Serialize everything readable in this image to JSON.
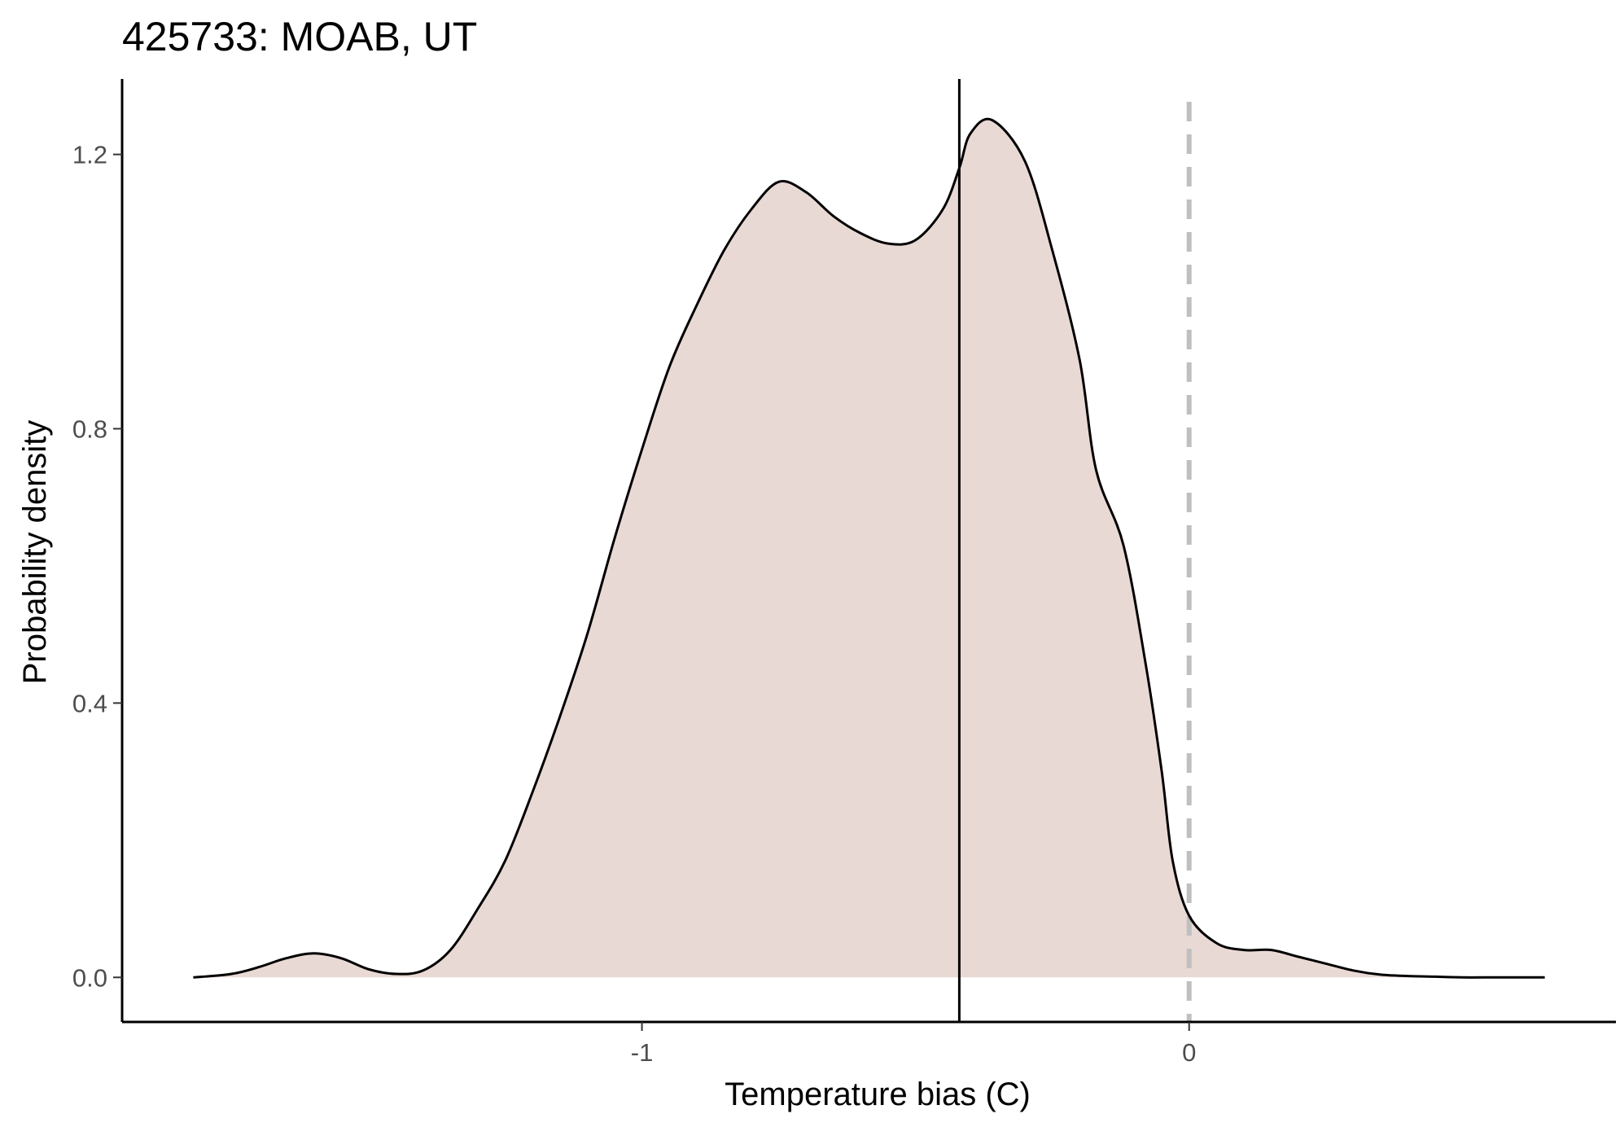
{
  "chart_data": {
    "type": "area",
    "title": "425733: MOAB, UT",
    "xlabel": "Temperature bias (C)",
    "ylabel": "Probability density",
    "xlim": [
      -1.95,
      0.78
    ],
    "ylim": [
      -0.065,
      1.31
    ],
    "x_ticks": [
      -1,
      0
    ],
    "x_tick_labels": [
      "-1",
      "0"
    ],
    "y_ticks": [
      0.0,
      0.4,
      0.8,
      1.2
    ],
    "y_tick_labels": [
      "0.0",
      "0.4",
      "0.8",
      "1.2"
    ],
    "grid": false,
    "legend": "none",
    "fill_color": "#e9d9d4",
    "line_color": "#000000",
    "reference_lines": [
      {
        "name": "mean-bias-line",
        "x": -0.42,
        "style": "solid",
        "color": "#000000"
      },
      {
        "name": "zero-bias-line",
        "x": 0.0,
        "style": "dashed",
        "color": "#bfbfbf"
      }
    ],
    "series": [
      {
        "x": [
          -1.82,
          -1.75,
          -1.7,
          -1.65,
          -1.6,
          -1.55,
          -1.5,
          -1.45,
          -1.4,
          -1.35,
          -1.3,
          -1.25,
          -1.2,
          -1.15,
          -1.1,
          -1.05,
          -1.0,
          -0.95,
          -0.9,
          -0.85,
          -0.8,
          -0.75,
          -0.7,
          -0.65,
          -0.6,
          -0.55,
          -0.5,
          -0.45,
          -0.42,
          -0.4,
          -0.36,
          -0.3,
          -0.25,
          -0.2,
          -0.17,
          -0.12,
          -0.08,
          -0.05,
          -0.03,
          0.0,
          0.05,
          0.1,
          0.15,
          0.2,
          0.25,
          0.3,
          0.35,
          0.4,
          0.45,
          0.5,
          0.55,
          0.6,
          0.65
        ],
        "y": [
          0.0,
          0.005,
          0.015,
          0.028,
          0.035,
          0.028,
          0.012,
          0.005,
          0.01,
          0.04,
          0.1,
          0.17,
          0.27,
          0.38,
          0.5,
          0.64,
          0.77,
          0.89,
          0.98,
          1.06,
          1.12,
          1.16,
          1.145,
          1.11,
          1.085,
          1.07,
          1.075,
          1.12,
          1.18,
          1.23,
          1.25,
          1.19,
          1.06,
          0.9,
          0.74,
          0.63,
          0.46,
          0.3,
          0.17,
          0.09,
          0.05,
          0.04,
          0.04,
          0.03,
          0.02,
          0.01,
          0.004,
          0.002,
          0.001,
          0.0,
          0.0,
          0.0,
          0.0
        ]
      }
    ]
  }
}
